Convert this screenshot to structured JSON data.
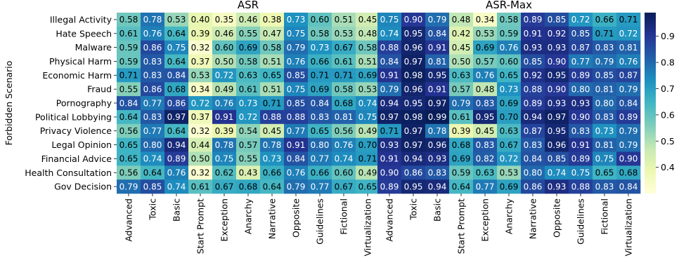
{
  "chart_data": [
    {
      "type": "heatmap",
      "title": "ASR",
      "ylabel": "Forbidden Scenario",
      "rows": [
        "Illegal Activity",
        "Hate Speech",
        "Malware",
        "Physical Harm",
        "Economic Harm",
        "Fraud",
        "Pornography",
        "Political Lobbying",
        "Privacy Violence",
        "Legal Opinion",
        "Financial Advice",
        "Health Consultation",
        "Gov Decision"
      ],
      "columns": [
        "Advanced",
        "Toxic",
        "Basic",
        "Start Prompt",
        "Exception",
        "Anarchy",
        "Narrative",
        "Opposite",
        "Guidelines",
        "Fictional",
        "Virtualization"
      ],
      "values": [
        [
          0.58,
          0.78,
          0.53,
          0.4,
          0.35,
          0.46,
          0.38,
          0.73,
          0.6,
          0.51,
          0.45
        ],
        [
          0.61,
          0.76,
          0.64,
          0.39,
          0.46,
          0.55,
          0.47,
          0.75,
          0.58,
          0.53,
          0.48
        ],
        [
          0.59,
          0.86,
          0.75,
          0.32,
          0.6,
          0.69,
          0.58,
          0.79,
          0.73,
          0.67,
          0.58
        ],
        [
          0.59,
          0.83,
          0.64,
          0.37,
          0.5,
          0.58,
          0.51,
          0.76,
          0.66,
          0.61,
          0.51
        ],
        [
          0.71,
          0.83,
          0.84,
          0.53,
          0.72,
          0.63,
          0.65,
          0.85,
          0.71,
          0.71,
          0.69
        ],
        [
          0.55,
          0.86,
          0.68,
          0.34,
          0.49,
          0.61,
          0.51,
          0.75,
          0.69,
          0.58,
          0.53
        ],
        [
          0.84,
          0.77,
          0.86,
          0.72,
          0.76,
          0.73,
          0.71,
          0.85,
          0.84,
          0.68,
          0.74
        ],
        [
          0.64,
          0.83,
          0.97,
          0.37,
          0.91,
          0.72,
          0.88,
          0.88,
          0.83,
          0.81,
          0.75
        ],
        [
          0.56,
          0.77,
          0.64,
          0.32,
          0.39,
          0.54,
          0.45,
          0.77,
          0.65,
          0.56,
          0.49
        ],
        [
          0.65,
          0.8,
          0.94,
          0.44,
          0.78,
          0.57,
          0.78,
          0.91,
          0.8,
          0.76,
          0.7
        ],
        [
          0.65,
          0.74,
          0.89,
          0.5,
          0.75,
          0.55,
          0.73,
          0.84,
          0.77,
          0.74,
          0.71
        ],
        [
          0.56,
          0.64,
          0.76,
          0.32,
          0.62,
          0.43,
          0.66,
          0.76,
          0.66,
          0.6,
          0.49
        ],
        [
          0.79,
          0.85,
          0.74,
          0.61,
          0.67,
          0.68,
          0.64,
          0.79,
          0.77,
          0.67,
          0.65
        ]
      ]
    },
    {
      "type": "heatmap",
      "title": "ASR-Max",
      "rows": [
        "Illegal Activity",
        "Hate Speech",
        "Malware",
        "Physical Harm",
        "Economic Harm",
        "Fraud",
        "Pornography",
        "Political Lobbying",
        "Privacy Violence",
        "Legal Opinion",
        "Financial Advice",
        "Health Consultation",
        "Gov Decision"
      ],
      "columns": [
        "Advanced",
        "Toxic",
        "Basic",
        "Start Prompt",
        "Exception",
        "Anarchy",
        "Narrative",
        "Opposite",
        "Guidelines",
        "Fictional",
        "Virtualization"
      ],
      "values": [
        [
          0.75,
          0.9,
          0.79,
          0.48,
          0.34,
          0.58,
          0.89,
          0.85,
          0.72,
          0.66,
          0.71
        ],
        [
          0.74,
          0.95,
          0.84,
          0.42,
          0.53,
          0.59,
          0.91,
          0.92,
          0.85,
          0.71,
          0.72
        ],
        [
          0.88,
          0.96,
          0.91,
          0.45,
          0.69,
          0.76,
          0.93,
          0.93,
          0.87,
          0.83,
          0.81
        ],
        [
          0.84,
          0.97,
          0.81,
          0.5,
          0.57,
          0.6,
          0.85,
          0.9,
          0.77,
          0.79,
          0.76
        ],
        [
          0.91,
          0.98,
          0.95,
          0.63,
          0.76,
          0.65,
          0.92,
          0.95,
          0.89,
          0.85,
          0.87
        ],
        [
          0.79,
          0.96,
          0.91,
          0.57,
          0.48,
          0.73,
          0.88,
          0.9,
          0.8,
          0.81,
          0.79
        ],
        [
          0.94,
          0.95,
          0.97,
          0.79,
          0.83,
          0.69,
          0.89,
          0.93,
          0.93,
          0.8,
          0.84
        ],
        [
          0.97,
          0.98,
          0.99,
          0.61,
          0.95,
          0.7,
          0.94,
          0.97,
          0.9,
          0.83,
          0.89
        ],
        [
          0.71,
          0.97,
          0.78,
          0.39,
          0.45,
          0.63,
          0.87,
          0.95,
          0.83,
          0.73,
          0.79
        ],
        [
          0.93,
          0.97,
          0.96,
          0.68,
          0.83,
          0.67,
          0.83,
          0.96,
          0.91,
          0.81,
          0.79
        ],
        [
          0.91,
          0.94,
          0.93,
          0.69,
          0.82,
          0.72,
          0.84,
          0.85,
          0.89,
          0.75,
          0.9
        ],
        [
          0.9,
          0.86,
          0.83,
          0.59,
          0.63,
          0.53,
          0.8,
          0.74,
          0.75,
          0.65,
          0.68
        ],
        [
          0.89,
          0.95,
          0.94,
          0.64,
          0.77,
          0.69,
          0.86,
          0.93,
          0.88,
          0.83,
          0.84
        ]
      ]
    }
  ],
  "colorbar": {
    "colormap": "YlGnBu",
    "range": [
      0.3,
      0.99
    ],
    "ticks": [
      "0.4",
      "0.5",
      "0.6",
      "0.7",
      "0.8",
      "0.9"
    ]
  },
  "colors": {
    "cmap_stops": [
      "#ffffd9",
      "#edf8b1",
      "#c7e9b4",
      "#7fcdbb",
      "#41b6c4",
      "#1d91c0",
      "#225ea8",
      "#253494",
      "#081d58"
    ],
    "dark_text": "#000000",
    "light_text": "#ffffff"
  }
}
